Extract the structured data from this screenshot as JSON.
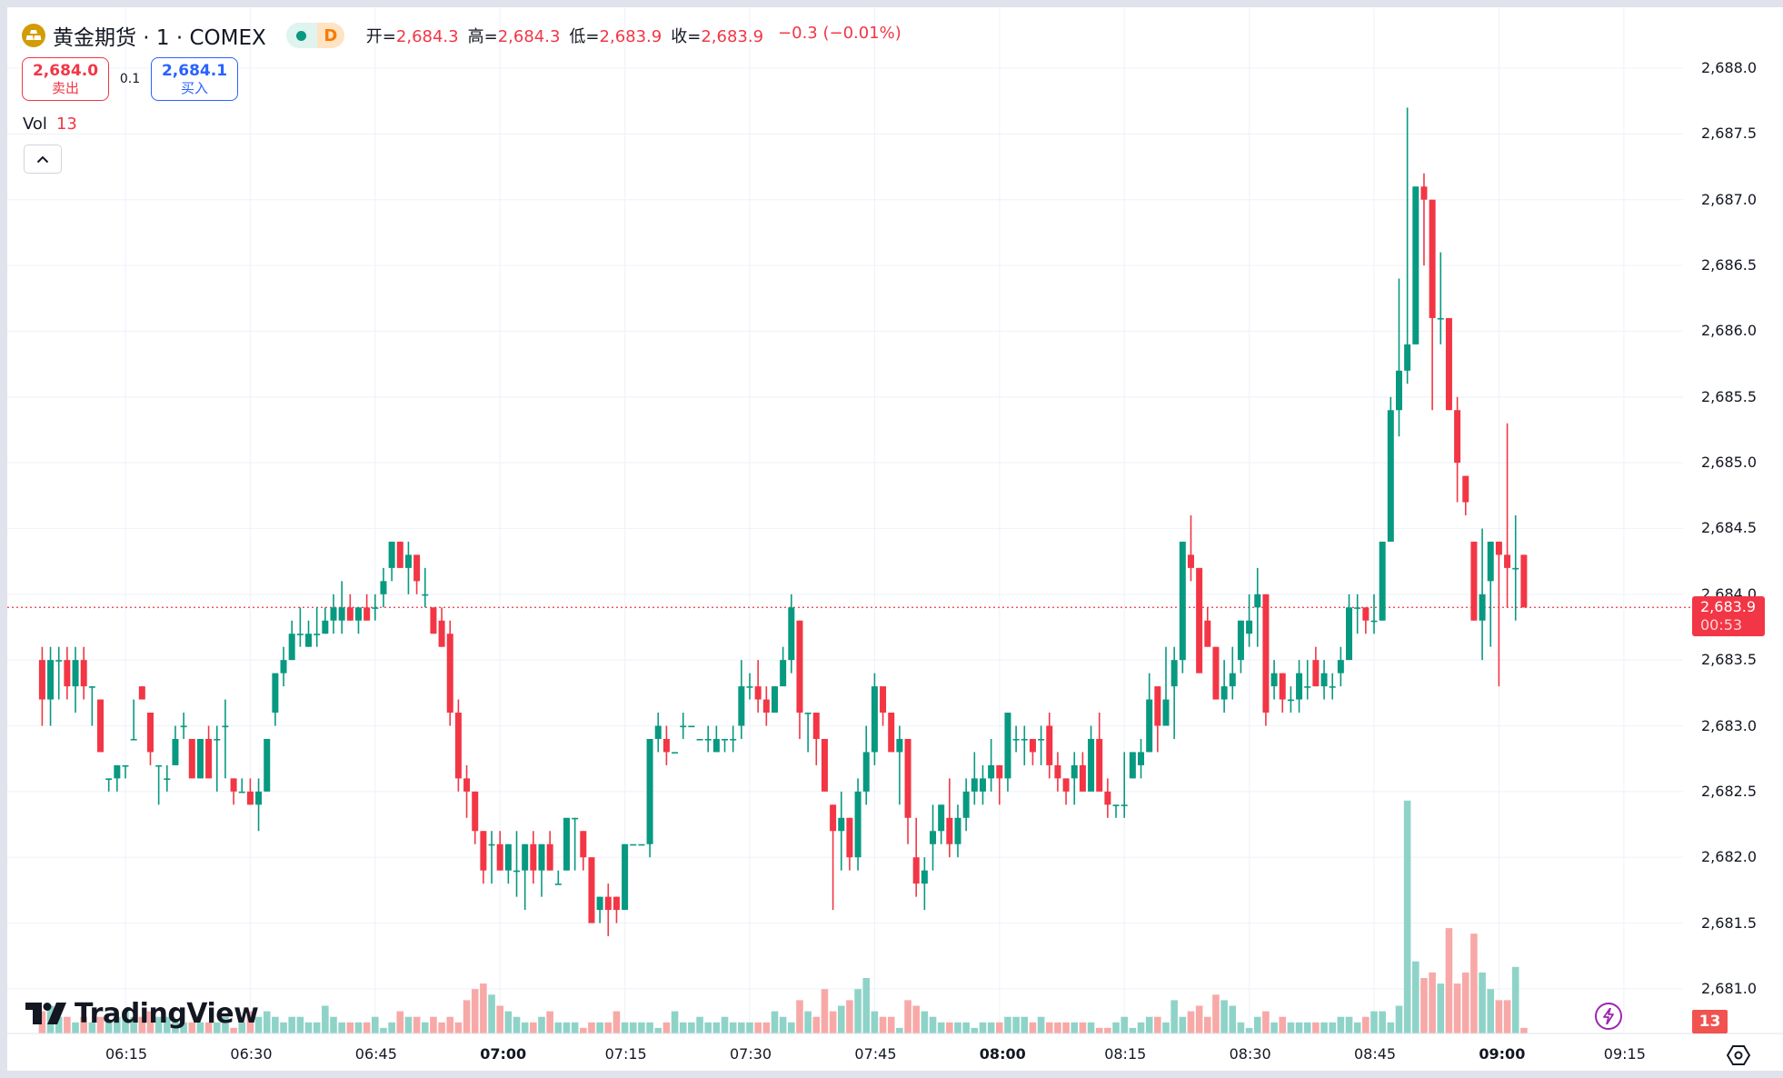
{
  "header": {
    "symbol_title": "黄金期货 · 1 · COMEX",
    "logo_icon": "gold-bars-icon",
    "market_status_icon": "market-open-dot-icon",
    "delay_badge": "D",
    "ohlc": {
      "open_label": "开=",
      "open": "2,684.3",
      "high_label": "高=",
      "high": "2,684.3",
      "low_label": "低=",
      "low": "2,683.9",
      "close_label": "收=",
      "close": "2,683.9",
      "change": "−0.3 (−0.01%)"
    }
  },
  "trade": {
    "sell_price": "2,684.0",
    "sell_label": "卖出",
    "spread": "0.1",
    "buy_price": "2,684.1",
    "buy_label": "买入"
  },
  "volume_legend": {
    "label": "Vol",
    "value": "13"
  },
  "collapse_icon": "chevron-up-icon",
  "branding": {
    "logo_text": "TradingView"
  },
  "price_axis": {
    "labels": [
      "2,688.0",
      "2,687.5",
      "2,687.0",
      "2,686.5",
      "2,686.0",
      "2,685.5",
      "2,685.0",
      "2,684.5",
      "2,684.0",
      "2,683.5",
      "2,683.0",
      "2,682.5",
      "2,682.0",
      "2,681.5",
      "2,681.0"
    ],
    "current_price": "2,683.9",
    "countdown": "00:53",
    "volume_badge": "13"
  },
  "time_axis": {
    "labels": [
      "06:15",
      "06:30",
      "06:45",
      "07:00",
      "07:15",
      "07:30",
      "07:45",
      "08:00",
      "08:15",
      "08:30",
      "08:45",
      "09:00",
      "09:15"
    ],
    "bold_labels": [
      "07:00",
      "08:00",
      "09:00"
    ]
  },
  "colors": {
    "up": "#089981",
    "down": "#f23645",
    "vol_up": "#8fd3c8",
    "vol_down": "#f7a9a7",
    "grid": "#f0f3fa",
    "background": "#ffffff",
    "frame": "#e0e3eb"
  },
  "chart_data": {
    "type": "candlestick",
    "title": "黄金期货 · 1 · COMEX",
    "interval": "1 minute",
    "xlabel": "",
    "ylabel": "",
    "ylim": [
      2680.8,
      2688.2
    ],
    "x_range": [
      "06:05",
      "09:14"
    ],
    "grid": true,
    "last_price": 2683.9,
    "ohlc_note": "Approximate OHLC per 1-min bar read off the chart (o,h,l,c), followed by relative volume",
    "candles": [
      [
        2683.5,
        2683.6,
        2683.0,
        2683.2,
        4
      ],
      [
        2683.2,
        2683.6,
        2683.0,
        2683.5,
        5
      ],
      [
        2683.5,
        2683.6,
        2683.2,
        2683.5,
        3
      ],
      [
        2683.5,
        2683.6,
        2683.2,
        2683.3,
        3
      ],
      [
        2683.3,
        2683.6,
        2683.1,
        2683.5,
        2
      ],
      [
        2683.5,
        2683.6,
        2683.2,
        2683.3,
        3
      ],
      [
        2683.3,
        2683.3,
        2683.0,
        2683.3,
        2
      ],
      [
        2683.2,
        2683.2,
        2682.8,
        2682.8,
        3
      ],
      [
        2682.6,
        2682.6,
        2682.5,
        2682.6,
        2
      ],
      [
        2682.6,
        2682.7,
        2682.5,
        2682.7,
        3
      ],
      [
        2682.7,
        2682.7,
        2682.6,
        2682.7,
        4
      ],
      [
        2682.9,
        2683.2,
        2682.9,
        2682.9,
        3
      ],
      [
        2683.3,
        2683.3,
        2683.2,
        2683.2,
        3
      ],
      [
        2683.1,
        2683.1,
        2682.7,
        2682.8,
        4
      ],
      [
        2682.7,
        2682.7,
        2682.4,
        2682.7,
        3
      ],
      [
        2682.6,
        2682.7,
        2682.5,
        2682.6,
        3
      ],
      [
        2682.7,
        2683.0,
        2682.7,
        2682.9,
        2
      ],
      [
        2683.0,
        2683.1,
        2682.9,
        2683.0,
        2
      ],
      [
        2682.9,
        2682.9,
        2682.6,
        2682.6,
        2
      ],
      [
        2682.6,
        2682.9,
        2682.6,
        2682.9,
        2
      ],
      [
        2682.9,
        2683.0,
        2682.6,
        2682.6,
        2
      ],
      [
        2682.9,
        2683.0,
        2682.5,
        2682.9,
        2
      ],
      [
        2683.0,
        2683.2,
        2682.6,
        2683.0,
        3
      ],
      [
        2682.6,
        2682.6,
        2682.4,
        2682.5,
        1
      ],
      [
        2682.5,
        2682.6,
        2682.5,
        2682.5,
        2
      ],
      [
        2682.5,
        2682.6,
        2682.4,
        2682.4,
        4
      ],
      [
        2682.4,
        2682.6,
        2682.2,
        2682.5,
        3
      ],
      [
        2682.5,
        2682.9,
        2682.5,
        2682.9,
        4
      ],
      [
        2683.1,
        2683.4,
        2683.0,
        2683.4,
        3
      ],
      [
        2683.4,
        2683.6,
        2683.3,
        2683.5,
        2
      ],
      [
        2683.5,
        2683.8,
        2683.5,
        2683.7,
        3
      ],
      [
        2683.7,
        2683.9,
        2683.6,
        2683.7,
        3
      ],
      [
        2683.6,
        2683.8,
        2683.6,
        2683.7,
        2
      ],
      [
        2683.7,
        2683.9,
        2683.6,
        2683.7,
        2
      ],
      [
        2683.7,
        2683.9,
        2683.7,
        2683.8,
        5
      ],
      [
        2683.8,
        2684.0,
        2683.7,
        2683.9,
        3
      ],
      [
        2683.8,
        2684.1,
        2683.7,
        2683.9,
        2
      ],
      [
        2683.9,
        2684.0,
        2683.8,
        2683.8,
        2
      ],
      [
        2683.8,
        2683.9,
        2683.7,
        2683.9,
        2
      ],
      [
        2683.9,
        2684.0,
        2683.8,
        2683.8,
        2
      ],
      [
        2683.9,
        2684.0,
        2683.8,
        2683.9,
        3
      ],
      [
        2684.0,
        2684.2,
        2683.9,
        2684.1,
        1
      ],
      [
        2684.2,
        2684.4,
        2684.1,
        2684.4,
        2
      ],
      [
        2684.4,
        2684.4,
        2684.2,
        2684.2,
        4
      ],
      [
        2684.2,
        2684.4,
        2684.0,
        2684.3,
        3
      ],
      [
        2684.3,
        2684.3,
        2684.0,
        2684.1,
        3
      ],
      [
        2684.0,
        2684.2,
        2683.9,
        2684.0,
        2
      ],
      [
        2683.9,
        2683.9,
        2683.7,
        2683.7,
        3
      ],
      [
        2683.8,
        2683.9,
        2683.6,
        2683.6,
        2
      ],
      [
        2683.7,
        2683.8,
        2683.0,
        2683.1,
        3
      ],
      [
        2683.1,
        2683.2,
        2682.5,
        2682.6,
        2
      ],
      [
        2682.6,
        2682.7,
        2682.3,
        2682.5,
        6
      ],
      [
        2682.5,
        2682.5,
        2682.1,
        2682.2,
        8
      ],
      [
        2682.2,
        2682.2,
        2681.8,
        2681.9,
        9
      ],
      [
        2682.1,
        2682.2,
        2681.8,
        2682.1,
        7
      ],
      [
        2682.1,
        2682.2,
        2681.9,
        2681.9,
        5
      ],
      [
        2681.9,
        2682.1,
        2681.8,
        2682.1,
        4
      ],
      [
        2681.9,
        2682.2,
        2681.7,
        2681.9,
        3
      ],
      [
        2681.9,
        2682.1,
        2681.6,
        2682.1,
        2
      ],
      [
        2682.1,
        2682.2,
        2681.8,
        2681.9,
        2
      ],
      [
        2681.9,
        2682.1,
        2681.7,
        2682.1,
        3
      ],
      [
        2682.1,
        2682.2,
        2681.9,
        2681.9,
        4
      ],
      [
        2681.8,
        2681.9,
        2681.8,
        2681.8,
        2
      ],
      [
        2681.9,
        2682.3,
        2681.9,
        2682.3,
        2
      ],
      [
        2682.3,
        2682.3,
        2681.9,
        2682.3,
        2
      ],
      [
        2682.2,
        2682.2,
        2681.9,
        2682.0,
        1
      ],
      [
        2682.0,
        2682.0,
        2681.5,
        2681.5,
        2
      ],
      [
        2681.6,
        2681.7,
        2681.5,
        2681.7,
        2
      ],
      [
        2681.7,
        2681.8,
        2681.4,
        2681.6,
        2
      ],
      [
        2681.7,
        2681.7,
        2681.5,
        2681.6,
        4
      ],
      [
        2681.6,
        2682.1,
        2681.6,
        2682.1,
        2
      ],
      [
        2682.1,
        2682.1,
        2682.1,
        2682.1,
        2
      ],
      [
        2682.1,
        2682.1,
        2682.1,
        2682.1,
        2
      ],
      [
        2682.1,
        2682.9,
        2682.0,
        2682.9,
        2
      ],
      [
        2682.9,
        2683.1,
        2682.8,
        2683.0,
        1
      ],
      [
        2682.9,
        2683.0,
        2682.7,
        2682.8,
        2
      ],
      [
        2682.8,
        2682.8,
        2682.8,
        2682.8,
        4
      ],
      [
        2683.0,
        2683.1,
        2682.9,
        2683.0,
        2
      ],
      [
        2683.0,
        2683.0,
        2683.0,
        2683.0,
        2
      ],
      [
        2682.9,
        2682.9,
        2682.9,
        2682.9,
        3
      ],
      [
        2682.9,
        2683.0,
        2682.8,
        2682.9,
        2
      ],
      [
        2682.8,
        2683.0,
        2682.8,
        2682.9,
        2
      ],
      [
        2682.9,
        2682.9,
        2682.8,
        2682.9,
        3
      ],
      [
        2682.9,
        2683.0,
        2682.8,
        2682.9,
        2
      ],
      [
        2683.0,
        2683.5,
        2682.9,
        2683.3,
        2
      ],
      [
        2683.3,
        2683.4,
        2683.2,
        2683.3,
        2
      ],
      [
        2683.3,
        2683.5,
        2683.1,
        2683.2,
        2
      ],
      [
        2683.2,
        2683.3,
        2683.0,
        2683.1,
        2
      ],
      [
        2683.1,
        2683.3,
        2683.1,
        2683.3,
        4
      ],
      [
        2683.3,
        2683.6,
        2683.3,
        2683.5,
        3
      ],
      [
        2683.5,
        2684.0,
        2683.4,
        2683.9,
        2
      ],
      [
        2683.8,
        2683.8,
        2682.9,
        2683.1,
        6
      ],
      [
        2683.1,
        2683.1,
        2682.8,
        2683.1,
        4
      ],
      [
        2683.1,
        2683.1,
        2682.7,
        2682.9,
        3
      ],
      [
        2682.9,
        2682.9,
        2682.5,
        2682.5,
        8
      ],
      [
        2682.4,
        2682.4,
        2681.6,
        2682.2,
        4
      ],
      [
        2682.2,
        2682.5,
        2681.9,
        2682.3,
        5
      ],
      [
        2682.3,
        2682.3,
        2681.9,
        2682.0,
        6
      ],
      [
        2682.0,
        2682.6,
        2681.9,
        2682.5,
        8
      ],
      [
        2682.5,
        2683.0,
        2682.4,
        2682.8,
        10
      ],
      [
        2682.8,
        2683.4,
        2682.7,
        2683.3,
        4
      ],
      [
        2683.3,
        2683.3,
        2683.0,
        2683.1,
        3
      ],
      [
        2683.1,
        2683.1,
        2682.8,
        2682.8,
        3
      ],
      [
        2682.8,
        2683.0,
        2682.4,
        2682.9,
        1
      ],
      [
        2682.9,
        2682.9,
        2682.1,
        2682.3,
        6
      ],
      [
        2682.0,
        2682.3,
        2681.7,
        2681.8,
        5
      ],
      [
        2681.8,
        2682.0,
        2681.6,
        2681.9,
        4
      ],
      [
        2682.1,
        2682.4,
        2681.9,
        2682.2,
        3
      ],
      [
        2682.2,
        2682.4,
        2682.1,
        2682.4,
        2
      ],
      [
        2682.3,
        2682.6,
        2682.0,
        2682.1,
        2
      ],
      [
        2682.1,
        2682.4,
        2682.0,
        2682.3,
        2
      ],
      [
        2682.3,
        2682.6,
        2682.2,
        2682.5,
        2
      ],
      [
        2682.5,
        2682.8,
        2682.4,
        2682.6,
        1
      ],
      [
        2682.5,
        2682.7,
        2682.4,
        2682.6,
        2
      ],
      [
        2682.6,
        2682.9,
        2682.5,
        2682.7,
        2
      ],
      [
        2682.7,
        2682.7,
        2682.4,
        2682.6,
        2
      ],
      [
        2682.6,
        2683.1,
        2682.5,
        2683.1,
        3
      ],
      [
        2682.9,
        2683.0,
        2682.8,
        2682.9,
        3
      ],
      [
        2682.9,
        2683.0,
        2682.7,
        2682.9,
        3
      ],
      [
        2682.9,
        2682.9,
        2682.7,
        2682.8,
        2
      ],
      [
        2682.9,
        2683.0,
        2682.7,
        2682.9,
        3
      ],
      [
        2683.0,
        2683.1,
        2682.6,
        2682.7,
        2
      ],
      [
        2682.7,
        2682.8,
        2682.5,
        2682.6,
        2
      ],
      [
        2682.6,
        2682.6,
        2682.4,
        2682.5,
        2
      ],
      [
        2682.6,
        2682.8,
        2682.4,
        2682.7,
        2
      ],
      [
        2682.7,
        2682.8,
        2682.5,
        2682.5,
        2
      ],
      [
        2682.5,
        2683.0,
        2682.5,
        2682.9,
        2
      ],
      [
        2682.9,
        2683.1,
        2682.5,
        2682.5,
        1
      ],
      [
        2682.5,
        2682.6,
        2682.3,
        2682.4,
        1
      ],
      [
        2682.4,
        2682.4,
        2682.3,
        2682.4,
        2
      ],
      [
        2682.4,
        2682.8,
        2682.3,
        2682.4,
        3
      ],
      [
        2682.6,
        2682.8,
        2682.6,
        2682.8,
        1
      ],
      [
        2682.7,
        2682.9,
        2682.6,
        2682.8,
        2
      ],
      [
        2682.8,
        2683.4,
        2682.8,
        2683.2,
        3
      ],
      [
        2683.3,
        2683.3,
        2682.8,
        2683.0,
        3
      ],
      [
        2683.0,
        2683.6,
        2683.0,
        2683.2,
        2
      ],
      [
        2683.3,
        2683.6,
        2682.9,
        2683.5,
        6
      ],
      [
        2683.5,
        2684.4,
        2683.4,
        2684.4,
        3
      ],
      [
        2684.3,
        2684.6,
        2684.1,
        2684.2,
        4
      ],
      [
        2684.2,
        2684.2,
        2683.4,
        2683.4,
        5
      ],
      [
        2683.8,
        2683.9,
        2683.6,
        2683.6,
        3
      ],
      [
        2683.6,
        2683.6,
        2683.2,
        2683.2,
        7
      ],
      [
        2683.2,
        2683.5,
        2683.1,
        2683.3,
        6
      ],
      [
        2683.3,
        2683.6,
        2683.2,
        2683.4,
        5
      ],
      [
        2683.5,
        2683.8,
        2683.4,
        2683.8,
        2
      ],
      [
        2683.7,
        2684.0,
        2683.6,
        2683.8,
        1
      ],
      [
        2683.9,
        2684.2,
        2683.6,
        2684.0,
        3
      ],
      [
        2684.0,
        2684.0,
        2683.0,
        2683.1,
        4
      ],
      [
        2683.3,
        2683.5,
        2683.2,
        2683.4,
        2
      ],
      [
        2683.4,
        2683.4,
        2683.1,
        2683.2,
        3
      ],
      [
        2683.2,
        2683.3,
        2683.1,
        2683.2,
        2
      ],
      [
        2683.2,
        2683.5,
        2683.1,
        2683.4,
        2
      ],
      [
        2683.3,
        2683.5,
        2683.2,
        2683.3,
        2
      ],
      [
        2683.5,
        2683.6,
        2683.3,
        2683.3,
        2
      ],
      [
        2683.3,
        2683.5,
        2683.2,
        2683.4,
        2
      ],
      [
        2683.3,
        2683.4,
        2683.2,
        2683.3,
        2
      ],
      [
        2683.4,
        2683.6,
        2683.3,
        2683.5,
        3
      ],
      [
        2683.5,
        2684.0,
        2683.5,
        2683.9,
        3
      ],
      [
        2683.9,
        2684.0,
        2683.7,
        2683.9,
        2
      ],
      [
        2683.9,
        2683.9,
        2683.7,
        2683.8,
        3
      ],
      [
        2683.8,
        2684.0,
        2683.7,
        2683.8,
        4
      ],
      [
        2683.8,
        2684.4,
        2683.8,
        2684.4,
        4
      ],
      [
        2684.4,
        2685.5,
        2684.4,
        2685.4,
        2
      ],
      [
        2685.4,
        2686.4,
        2685.2,
        2685.7,
        5
      ],
      [
        2685.7,
        2687.7,
        2685.6,
        2685.9,
        42
      ],
      [
        2685.9,
        2687.1,
        2685.9,
        2687.1,
        13
      ],
      [
        2687.1,
        2687.2,
        2686.5,
        2687.0,
        10
      ],
      [
        2687.0,
        2687.0,
        2685.4,
        2686.1,
        11
      ],
      [
        2686.1,
        2686.6,
        2685.9,
        2686.1,
        9
      ],
      [
        2686.1,
        2686.1,
        2685.4,
        2685.4,
        19
      ],
      [
        2685.4,
        2685.5,
        2684.7,
        2685.0,
        9
      ],
      [
        2684.9,
        2684.9,
        2684.6,
        2684.7,
        11
      ],
      [
        2684.4,
        2684.4,
        2683.8,
        2683.8,
        18
      ],
      [
        2683.8,
        2684.5,
        2683.5,
        2684.0,
        11
      ],
      [
        2684.1,
        2684.4,
        2683.6,
        2684.4,
        8
      ],
      [
        2684.4,
        2684.4,
        2683.3,
        2684.3,
        6
      ],
      [
        2684.3,
        2685.3,
        2683.9,
        2684.2,
        6
      ],
      [
        2684.2,
        2684.6,
        2683.8,
        2684.2,
        12
      ],
      [
        2684.3,
        2684.3,
        2683.9,
        2683.9,
        1
      ]
    ]
  }
}
